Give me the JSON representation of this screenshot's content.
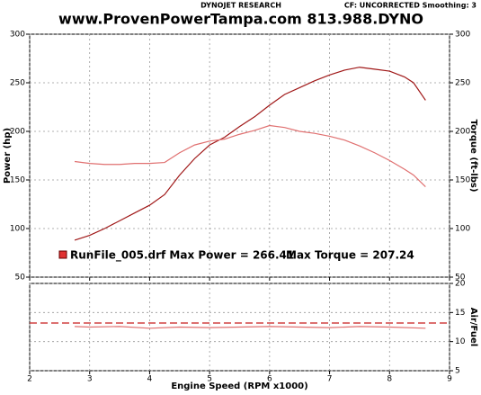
{
  "header": {
    "left": "DYNOJET RESEARCH",
    "right": "CF: UNCORRECTED  Smoothing: 3",
    "title": "www.ProvenPowerTampa.com 813.988.DYNO"
  },
  "legend": {
    "power_text": "RunFile_005.drf Max Power = 266.41",
    "torque_text": "Max Torque = 207.24",
    "color": "#e03030"
  },
  "chart_data": [
    {
      "type": "line",
      "ylabel": "Power (hp)",
      "y2label": "Torque (ft-lbs)",
      "x": [
        2.75,
        3,
        3.25,
        3.5,
        3.75,
        4,
        4.25,
        4.5,
        4.75,
        5,
        5.25,
        5.5,
        5.75,
        6,
        6.25,
        6.5,
        6.75,
        7,
        7.25,
        7.5,
        7.75,
        8,
        8.25,
        8.4,
        8.6
      ],
      "series": [
        {
          "name": "Power",
          "color": "#a01818",
          "values": [
            88,
            93,
            100,
            108,
            116,
            124,
            135,
            155,
            172,
            186,
            194,
            205,
            215,
            227,
            238,
            245,
            252,
            258,
            263,
            266,
            264,
            262,
            256,
            250,
            232
          ]
        },
        {
          "name": "Torque",
          "color": "#e07070",
          "axis": "y2",
          "values": [
            169,
            167,
            166,
            166,
            167,
            167,
            168,
            178,
            186,
            190,
            192,
            197,
            201,
            206,
            204,
            200,
            198,
            195,
            191,
            185,
            178,
            170,
            161,
            155,
            143
          ]
        }
      ],
      "xlim": [
        2,
        9
      ],
      "xticks": [
        2,
        3,
        4,
        5,
        6,
        7,
        8,
        9
      ],
      "ylim": [
        50,
        300
      ],
      "yticks": [
        50,
        100,
        150,
        200,
        250,
        300
      ],
      "y2lim": [
        50,
        300
      ],
      "y2ticks": [
        50,
        100,
        150,
        200,
        250,
        300
      ],
      "grid": true
    },
    {
      "type": "line",
      "xlabel": "Engine Speed (RPM x1000)",
      "y2label": "Air/Fuel",
      "x": [
        2.75,
        3,
        3.5,
        4,
        4.5,
        5,
        5.5,
        6,
        6.5,
        7,
        7.5,
        8,
        8.6
      ],
      "series": [
        {
          "name": "Air/Fuel",
          "color": "#e07070",
          "axis": "y2",
          "values": [
            12.6,
            12.5,
            12.6,
            12.3,
            12.5,
            12.4,
            12.5,
            12.6,
            12.5,
            12.4,
            12.6,
            12.5,
            12.3
          ]
        }
      ],
      "reference": 13.2,
      "reference_color": "#d04040",
      "xlim": [
        2,
        9
      ],
      "xticks": [
        2,
        3,
        4,
        5,
        6,
        7,
        8,
        9
      ],
      "y2lim": [
        5,
        20
      ],
      "y2ticks": [
        5,
        10,
        15,
        20
      ],
      "grid": true
    }
  ]
}
